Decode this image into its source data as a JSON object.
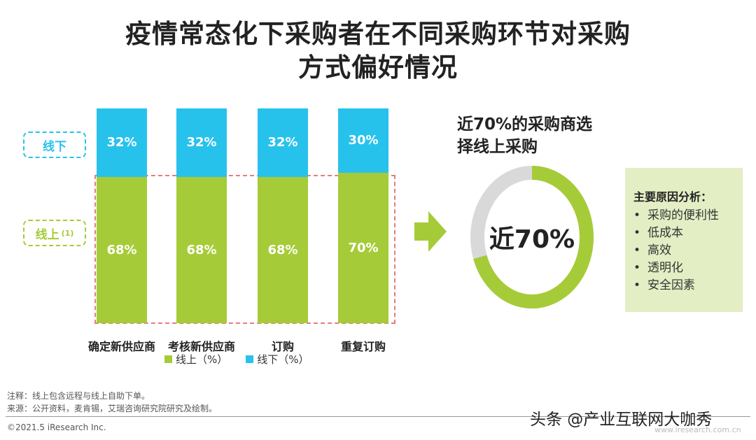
{
  "title": {
    "line1": "疫情常态化下采购者在不同采购环节对采购",
    "line2": "方式偏好情况"
  },
  "chart_data": {
    "type": "bar",
    "stacked": true,
    "categories": [
      "确定新供应商",
      "考核新供应商",
      "订购",
      "重复订购"
    ],
    "series": [
      {
        "name": "线上（%）",
        "values": [
          68,
          68,
          68,
          70
        ],
        "labels": [
          "68%",
          "68%",
          "68%",
          "70%"
        ],
        "color": "#a5cc38"
      },
      {
        "name": "线下（%）",
        "values": [
          32,
          32,
          32,
          30
        ],
        "labels": [
          "32%",
          "32%",
          "32%",
          "30%"
        ],
        "color": "#27c2ec"
      }
    ],
    "ylim": [
      0,
      100
    ]
  },
  "tags": {
    "offline": "线下",
    "online": "线上",
    "online_note": "(1)"
  },
  "legend": {
    "online": "线上（%）",
    "offline": "线下（%）"
  },
  "donut": {
    "headline_l1": "近70%的采购商选",
    "headline_l2": "择线上采购",
    "center_text": "近70%",
    "value": 70,
    "color_main": "#a5cc38",
    "color_rest": "#d9d9d9"
  },
  "reasons": {
    "title": "主要原因分析：",
    "items": [
      "采购的便利性",
      "低成本",
      "高效",
      "透明化",
      "安全因素"
    ]
  },
  "notes": {
    "note": "注释：线上包含远程与线上自助下单。",
    "source": "来源：公开资料，麦肯锡，艾瑞咨询研究院研究及绘制。",
    "copyright": "©2021.5 iResearch Inc.",
    "watermark": "头条 @产业互联网大咖秀",
    "site": "www.iresearch.com.cn"
  }
}
